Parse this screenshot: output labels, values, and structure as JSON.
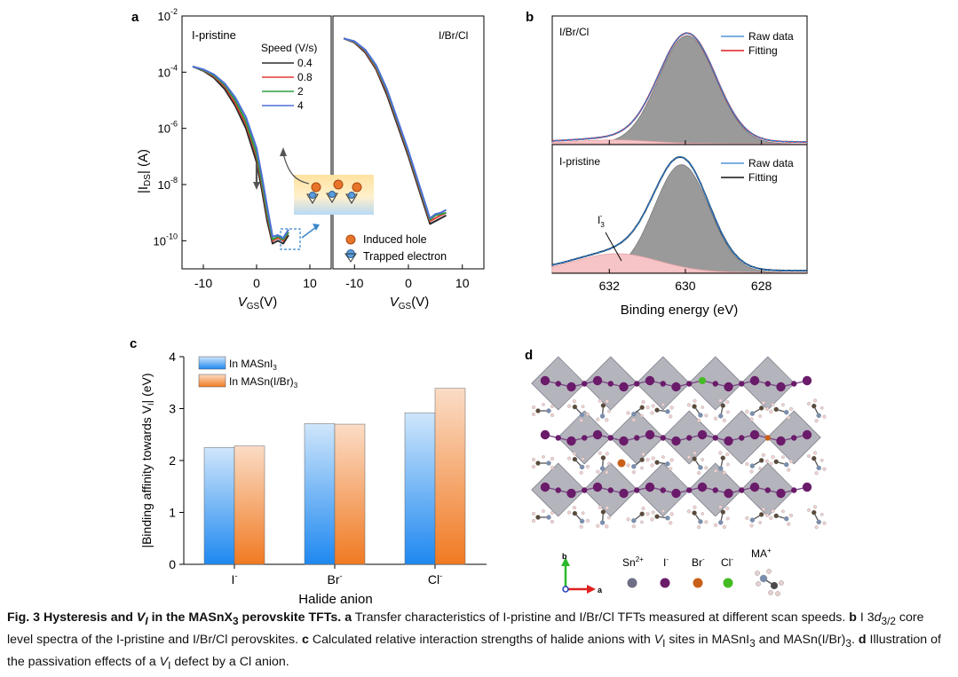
{
  "figure": {
    "panel_labels": [
      "a",
      "b",
      "c",
      "d"
    ]
  },
  "caption": {
    "lead": "Fig. 3 Hysteresis and ",
    "lead_vi": "V",
    "lead_vi_sub": "I",
    "lead_rest": " in the MASnX",
    "lead_sub3": "3",
    "lead_end": " perovskite TFTs.",
    "a_label": "a",
    "a_text": " Transfer characteristics of I-pristine and I/Br/Cl TFTs measured at different scan speeds.",
    "b_label": "b",
    "b_text_1": " I 3",
    "b_text_d": "d",
    "b_text_sub": "3/2",
    "b_text_2": " core level spectra of the I-pristine and I/Br/Cl perovskites.",
    "c_label": "c",
    "c_text_1": " Calculated relative interaction strengths of halide anions with ",
    "c_text_vi": "V",
    "c_text_vi_sub": "I",
    "c_text_2": " sites in MASnI",
    "c_text_sub3": "3",
    "c_text_3": " and MASn(I/Br)",
    "c_text_sub3b": "3",
    "c_text_4": ".",
    "d_label": "d",
    "d_text_1": " Illustration of the passivation effects of a ",
    "d_text_vi": "V",
    "d_text_vi_sub": "I",
    "d_text_2": " defect by a Cl anion."
  },
  "chart_data": [
    {
      "panel": "a-left",
      "type": "line",
      "title": "I-pristine",
      "xlabel": "VGS(V)",
      "ylabel": "|IDS| (A)",
      "xlim": [
        -14,
        14
      ],
      "ylim_log10": [
        -11,
        -2
      ],
      "log_y": true,
      "x_ticks": [
        "-10",
        "0",
        "10"
      ],
      "y_ticks": [
        "10-2",
        "10-4",
        "10-6",
        "10-8",
        "10-10"
      ],
      "legend_title": "Speed (V/s)",
      "series": [
        {
          "name": "0.4",
          "color": "#2b2b2b",
          "x": [
            -12,
            -10,
            -8,
            -6,
            -4,
            -2,
            0,
            1,
            2,
            3,
            4,
            5,
            6
          ],
          "y_log10": [
            -3.8,
            -3.95,
            -4.2,
            -4.6,
            -5.2,
            -6.0,
            -7.2,
            -8.2,
            -9.3,
            -10.1,
            -10.0,
            -10.1,
            -9.8
          ]
        },
        {
          "name": "0.8",
          "color": "#e53935",
          "x": [
            -12,
            -10,
            -8,
            -6,
            -4,
            -2,
            0,
            1,
            2,
            3,
            4,
            5,
            6
          ],
          "y_log10": [
            -3.8,
            -3.93,
            -4.15,
            -4.5,
            -5.1,
            -5.85,
            -7.0,
            -8.0,
            -9.1,
            -10.0,
            -9.9,
            -10.0,
            -9.7
          ]
        },
        {
          "name": "2",
          "color": "#2e9e3e",
          "x": [
            -12,
            -10,
            -8,
            -6,
            -4,
            -2,
            0,
            1,
            2,
            3,
            4,
            5,
            6
          ],
          "y_log10": [
            -3.8,
            -3.92,
            -4.12,
            -4.45,
            -5.0,
            -5.75,
            -6.9,
            -7.9,
            -9.0,
            -9.95,
            -9.85,
            -9.95,
            -9.7
          ]
        },
        {
          "name": "4",
          "color": "#4d6fd6",
          "x": [
            -12,
            -10,
            -8,
            -6,
            -4,
            -2,
            0,
            1,
            2,
            3,
            4,
            5,
            6
          ],
          "y_log10": [
            -3.8,
            -3.9,
            -4.08,
            -4.4,
            -4.9,
            -5.6,
            -6.7,
            -7.7,
            -8.8,
            -9.85,
            -9.8,
            -9.9,
            -9.6
          ]
        }
      ],
      "legend_items": [
        "Induced hole",
        "Trapped electron"
      ]
    },
    {
      "panel": "a-right",
      "type": "line",
      "title": "I/Br/Cl",
      "xlabel": "VGS(V)",
      "xlim": [
        -14,
        14
      ],
      "ylim_log10": [
        -11,
        -2
      ],
      "log_y": true,
      "x_ticks": [
        "-10",
        "0",
        "10"
      ],
      "series": [
        {
          "name": "0.4",
          "color": "#2b2b2b",
          "x": [
            -12,
            -10,
            -8,
            -6,
            -4,
            -2,
            0,
            2,
            4,
            5,
            6,
            7
          ],
          "y_log10": [
            -2.8,
            -2.95,
            -3.3,
            -3.9,
            -4.8,
            -5.9,
            -7.0,
            -8.2,
            -9.4,
            -9.3,
            -9.2,
            -9.1
          ]
        },
        {
          "name": "0.8",
          "color": "#e53935",
          "x": [
            -12,
            -10,
            -8,
            -6,
            -4,
            -2,
            0,
            2,
            4,
            5,
            6,
            7
          ],
          "y_log10": [
            -2.8,
            -2.93,
            -3.25,
            -3.85,
            -4.7,
            -5.8,
            -6.9,
            -8.1,
            -9.3,
            -9.2,
            -9.1,
            -9.0
          ]
        },
        {
          "name": "2",
          "color": "#2e9e3e",
          "x": [
            -12,
            -10,
            -8,
            -6,
            -4,
            -2,
            0,
            2,
            4,
            5,
            6,
            7
          ],
          "y_log10": [
            -2.8,
            -2.92,
            -3.22,
            -3.8,
            -4.65,
            -5.75,
            -6.85,
            -8.05,
            -9.25,
            -9.1,
            -9.05,
            -9.0
          ]
        },
        {
          "name": "4",
          "color": "#4d6fd6",
          "x": [
            -12,
            -10,
            -8,
            -6,
            -4,
            -2,
            0,
            2,
            4,
            5,
            6,
            7
          ],
          "y_log10": [
            -2.8,
            -2.9,
            -3.2,
            -3.75,
            -4.6,
            -5.7,
            -6.8,
            -8.0,
            -9.2,
            -9.05,
            -9.0,
            -8.9
          ]
        }
      ]
    },
    {
      "panel": "b-top",
      "type": "area",
      "title": "I/Br/Cl",
      "xlabel": "Binding energy (eV)",
      "xlim": [
        633.5,
        626.8
      ],
      "x_ticks": [
        "632",
        "630",
        "628"
      ],
      "legend": [
        "Raw data",
        "Fitting"
      ],
      "series": [
        {
          "name": "Raw data",
          "color": "#2f7fd0"
        },
        {
          "name": "Fitting",
          "color": "#e01b24"
        }
      ],
      "peaks": [
        {
          "center": 629.95,
          "height": 1.0,
          "width": 0.75,
          "fill": "#9a9a9a"
        },
        {
          "center": 631.9,
          "height": 0.035,
          "width": 1.0,
          "fill": "#f6c4c6"
        }
      ]
    },
    {
      "panel": "b-bottom",
      "type": "area",
      "title": "I-pristine",
      "xlabel": "Binding energy (eV)",
      "xlim": [
        633.5,
        626.8
      ],
      "x_ticks": [
        "632",
        "630",
        "628"
      ],
      "annotation": "I3-",
      "legend": [
        "Raw data",
        "Fitting"
      ],
      "series": [
        {
          "name": "Raw data",
          "color": "#2f7fd0"
        },
        {
          "name": "Fitting",
          "color": "#111111"
        }
      ],
      "peaks": [
        {
          "center": 630.1,
          "height": 0.92,
          "width": 0.72,
          "fill": "#9a9a9a"
        },
        {
          "center": 631.8,
          "height": 0.16,
          "width": 1.1,
          "fill": "#f6c4c6"
        }
      ]
    },
    {
      "panel": "c",
      "type": "bar",
      "xlabel": "Halide anion",
      "ylabel": "|Binding affinity towards VI| (eV)",
      "ylim": [
        0,
        4
      ],
      "y_ticks": [
        "0",
        "1",
        "2",
        "3",
        "4"
      ],
      "categories": [
        "I-",
        "Br-",
        "Cl-"
      ],
      "series": [
        {
          "name": "In MASnI3",
          "color": "#2f8fe8",
          "values": [
            2.25,
            2.71,
            2.92
          ]
        },
        {
          "name": "In MASn(I/Br)3",
          "color": "#f07a2a",
          "values": [
            2.28,
            2.7,
            3.39
          ]
        }
      ]
    }
  ],
  "panel_d": {
    "axis_b": "b",
    "axis_a": "a",
    "legend": [
      "Sn2+",
      "I-",
      "Br-",
      "Cl-",
      "MA+"
    ],
    "colors": {
      "Sn": "#6e6e86",
      "I": "#6a1b6a",
      "Br": "#c9601a",
      "Cl": "#44bb22",
      "octahedron": "#8c8c98"
    }
  }
}
